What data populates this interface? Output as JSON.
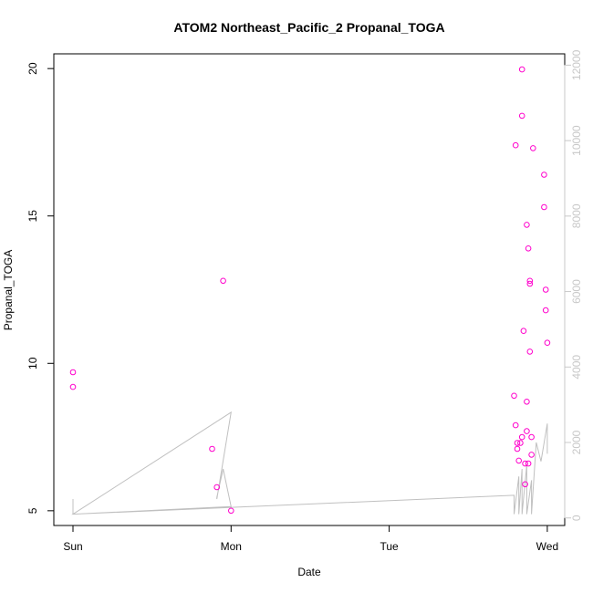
{
  "chart_data": {
    "type": "scatter",
    "title": "ATOM2 Northeast_Pacific_2 Propanal_TOGA",
    "xlabel": "Date",
    "ylabel": "Propanal_TOGA",
    "x_ticks": [
      "Sun",
      "Mon",
      "Tue",
      "Wed"
    ],
    "ylim": [
      4.5,
      20.5
    ],
    "y_ticks": [
      5,
      10,
      15,
      20
    ],
    "y2lim": [
      -200,
      12300
    ],
    "y2_ticks": [
      0,
      2000,
      4000,
      6000,
      8000,
      10000,
      12000
    ],
    "grid": false,
    "colors": {
      "points": "#ff00cc",
      "line": "#c0c0c0",
      "right_axis": "#c8c8c8"
    },
    "series": [
      {
        "role": "points",
        "x_days": [
          0.0,
          0.0,
          0.88,
          0.91,
          0.95,
          1.0,
          2.79,
          2.8,
          2.8,
          2.81,
          2.81,
          2.82,
          2.83,
          2.84,
          2.84,
          2.84,
          2.85,
          2.86,
          2.86,
          2.87,
          2.87,
          2.87,
          2.88,
          2.88,
          2.89,
          2.89,
          2.89,
          2.9,
          2.9,
          2.91,
          2.98,
          2.98,
          2.99,
          2.99,
          3.0
        ],
        "y": [
          9.7,
          9.2,
          7.1,
          5.8,
          12.8,
          5.0,
          8.9,
          17.4,
          7.9,
          7.3,
          7.1,
          6.7,
          7.3,
          19.97,
          18.4,
          7.5,
          11.1,
          5.9,
          6.6,
          8.7,
          7.7,
          14.7,
          6.6,
          13.9,
          10.4,
          12.8,
          12.7,
          7.5,
          6.9,
          17.3,
          16.4,
          15.3,
          12.5,
          11.8,
          10.7
        ]
      },
      {
        "role": "altitude_line",
        "x_days": [
          0.0,
          0.0,
          1.0,
          0.95,
          0.91,
          0.91,
          1.0,
          0.0,
          2.79,
          2.79,
          2.82,
          2.82,
          2.84,
          2.84,
          2.87,
          2.87,
          2.9,
          2.9,
          2.93,
          2.96,
          3.0,
          3.0
        ],
        "y2": [
          500,
          100,
          300,
          1300,
          550,
          500,
          2800,
          100,
          600,
          100,
          1100,
          100,
          1300,
          100,
          1400,
          100,
          1000,
          100,
          2000,
          1500,
          2500,
          1700
        ]
      }
    ]
  }
}
